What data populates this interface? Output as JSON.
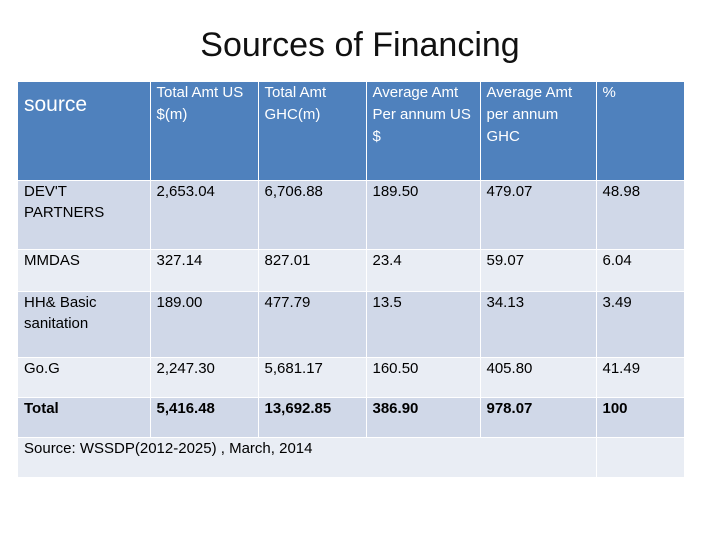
{
  "title": "Sources of Financing",
  "table": {
    "headers": [
      "source",
      "Total Amt US $(m)",
      "Total Amt GHC(m)",
      "Average Amt Per annum US $",
      "Average Amt per annum GHC",
      "%"
    ],
    "rows": [
      [
        "DEV'T PARTNERS",
        "2,653.04",
        "6,706.88",
        "189.50",
        "479.07",
        "48.98"
      ],
      [
        "MMDAS",
        "327.14",
        "827.01",
        "23.4",
        "59.07",
        "6.04"
      ],
      [
        "HH& Basic sanitation",
        "189.00",
        "477.79",
        "13.5",
        "34.13",
        "3.49"
      ],
      [
        "Go.G",
        "2,247.30",
        "5,681.17",
        "160.50",
        "405.80",
        "41.49"
      ],
      [
        "Total",
        "5,416.48",
        "13,692.85",
        "386.90",
        "978.07",
        "100"
      ]
    ],
    "footer_note": "Source: WSSDP(2012-2025) , March, 2014"
  },
  "colors": {
    "header_bg": "#4f81bd",
    "row_dark": "#d0d8e8",
    "row_light": "#e9edf4"
  }
}
